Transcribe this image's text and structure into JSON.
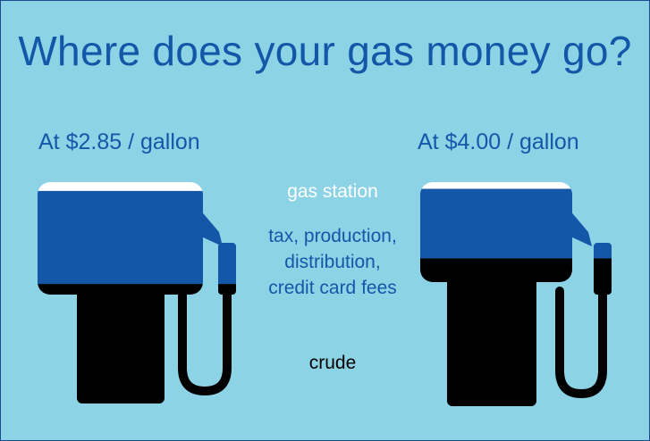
{
  "title": "Where does your gas money go?",
  "pumps": [
    {
      "price_label": "At $2.85 / gallon",
      "fractions": {
        "gas_station": 0.04,
        "tax_production_distribution_fees": 0.42,
        "crude": 0.54
      }
    },
    {
      "price_label": "At $4.00 / gallon",
      "fractions": {
        "gas_station": 0.03,
        "tax_production_distribution_fees": 0.31,
        "crude": 0.66
      }
    }
  ],
  "labels": {
    "gas_station": "gas station",
    "tax": [
      "tax, production,",
      "distribution,",
      "credit card fees"
    ],
    "crude": "crude"
  },
  "colors": {
    "background": "#8dd3e6",
    "gas_station": "#ffffff",
    "tax": "#1457a8",
    "crude": "#000000",
    "text": "#1457a8"
  }
}
